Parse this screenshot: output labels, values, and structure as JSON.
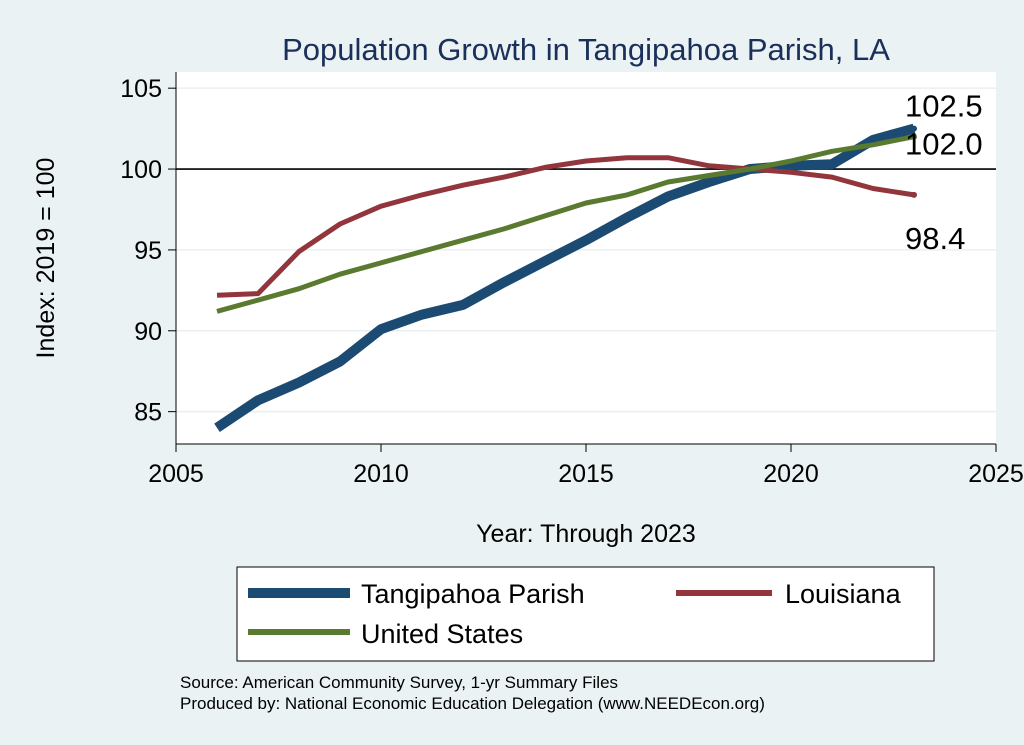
{
  "chart_data": {
    "type": "line",
    "title": "Population Growth in Tangipahoa Parish, LA",
    "xlabel": "Year: Through 2023",
    "ylabel": "Index: 2019 = 100",
    "xlim": [
      2005,
      2025
    ],
    "ylim": [
      83,
      106
    ],
    "xticks": [
      2005,
      2010,
      2015,
      2020,
      2025
    ],
    "yticks": [
      85,
      90,
      95,
      100,
      105
    ],
    "reference_line": 100,
    "grid": true,
    "legend_position": "bottom",
    "series": [
      {
        "name": "Tangipahoa Parish",
        "color": "#1b4a73",
        "x": [
          2006,
          2007,
          2008,
          2009,
          2010,
          2011,
          2012,
          2013,
          2014,
          2015,
          2016,
          2017,
          2018,
          2019,
          2020,
          2021,
          2022,
          2023
        ],
        "values": [
          84.0,
          85.7,
          86.8,
          88.1,
          90.1,
          91.0,
          91.6,
          93.0,
          94.3,
          95.6,
          97.0,
          98.3,
          99.2,
          100.0,
          100.2,
          100.3,
          101.8,
          102.5
        ],
        "end_label": "102.5"
      },
      {
        "name": "Louisiana",
        "color": "#92353d",
        "x": [
          2006,
          2007,
          2008,
          2009,
          2010,
          2011,
          2012,
          2013,
          2014,
          2015,
          2016,
          2017,
          2018,
          2019,
          2020,
          2021,
          2022,
          2023
        ],
        "values": [
          92.2,
          92.3,
          94.9,
          96.6,
          97.7,
          98.4,
          99.0,
          99.5,
          100.1,
          100.5,
          100.7,
          100.7,
          100.2,
          100.0,
          99.8,
          99.5,
          98.8,
          98.4
        ],
        "end_label": "98.4"
      },
      {
        "name": "United States",
        "color": "#5a7a2f",
        "x": [
          2006,
          2007,
          2008,
          2009,
          2010,
          2011,
          2012,
          2013,
          2014,
          2015,
          2016,
          2017,
          2018,
          2019,
          2020,
          2021,
          2022,
          2023
        ],
        "values": [
          91.2,
          91.9,
          92.6,
          93.5,
          94.2,
          94.9,
          95.6,
          96.3,
          97.1,
          97.9,
          98.4,
          99.2,
          99.6,
          100.0,
          100.5,
          101.1,
          101.5,
          102.0
        ],
        "end_label": "102.0"
      }
    ],
    "notes": [
      "Source: American Community Survey, 1-yr Summary Files",
      "Produced by: National Economic Education Delegation (www.NEEDEcon.org)"
    ]
  }
}
